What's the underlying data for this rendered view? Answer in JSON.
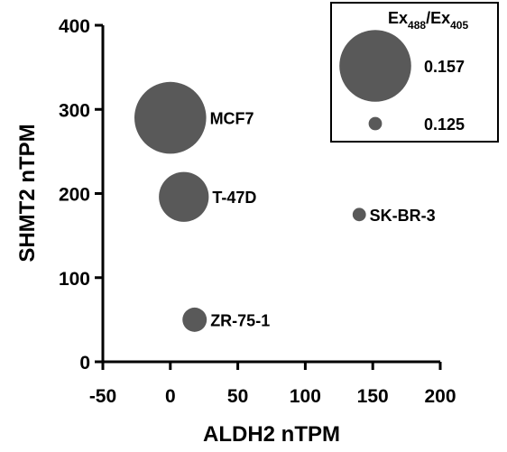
{
  "chart_data": {
    "type": "scatter",
    "xlabel": "ALDH2 nTPM",
    "ylabel": "SHMT2 nTPM",
    "xlim": [
      -50,
      200
    ],
    "ylim": [
      0,
      400
    ],
    "xticks": [
      -50,
      0,
      50,
      100,
      150,
      200
    ],
    "yticks": [
      0,
      100,
      200,
      300,
      400
    ],
    "points": [
      {
        "label": "MCF7",
        "x": 0,
        "y": 290,
        "size": 0.157
      },
      {
        "label": "T-47D",
        "x": 10,
        "y": 196,
        "size": 0.145
      },
      {
        "label": "SK-BR-3",
        "x": 140,
        "y": 175,
        "size": 0.125
      },
      {
        "label": "ZR-75-1",
        "x": 18,
        "y": 50,
        "size": 0.131
      }
    ],
    "legend": {
      "placement": "top-right",
      "title_main_1": "Ex",
      "title_sub_1": "488",
      "title_slash": "/Ex",
      "title_sub_2": "405",
      "entries": [
        {
          "label": "0.157",
          "size": 0.157
        },
        {
          "label": "0.125",
          "size": 0.125
        }
      ]
    },
    "marker_color": "#595959",
    "grid": false
  }
}
